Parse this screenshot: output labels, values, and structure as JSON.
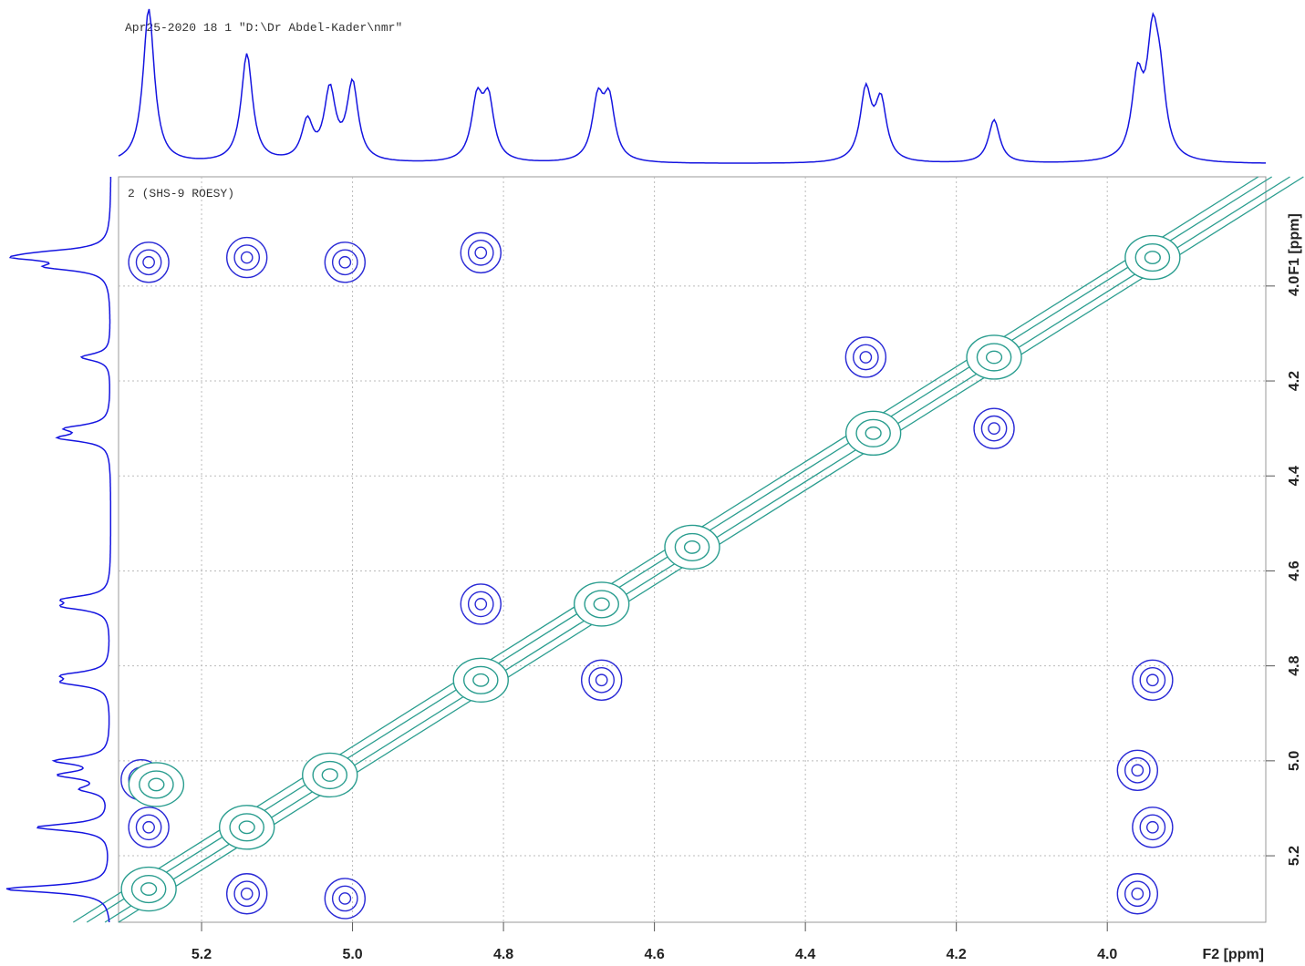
{
  "chart_data": {
    "type": "contour",
    "header": "Apr25-2020  18  1  \"D:\\Dr Abdel-Kader\\nmr\"",
    "subtitle": "2    (SHS-9 ROESY)",
    "x_label": "F2 [ppm]",
    "y_label": "F1 [ppm]",
    "xlim": [
      5.31,
      3.79
    ],
    "ylim": [
      3.77,
      5.34
    ],
    "xticks": [
      5.2,
      {
        "value": 5,
        "label": "5.0"
      },
      4.8,
      4.6,
      4.4,
      4.2,
      {
        "value": 4,
        "label": "4.0"
      }
    ],
    "yticks": [
      {
        "value": 4,
        "label": "4.0"
      },
      4.2,
      4.4,
      4.6,
      4.8,
      {
        "value": 5,
        "label": "5.0"
      },
      5.2
    ],
    "grid": true,
    "series": [
      {
        "color": "#2a2ad6",
        "x": [
          5.27,
          5.14,
          5.01,
          4.83,
          4.32,
          4.15,
          4.83,
          4.67,
          3.94,
          3.96,
          3.94,
          3.96,
          5.28,
          5.27,
          5.14,
          5.01
        ],
        "values": [
          3.95,
          3.94,
          3.95,
          3.93,
          4.15,
          4.3,
          4.67,
          4.83,
          4.83,
          5.02,
          5.14,
          5.28,
          5.04,
          5.14,
          5.28,
          5.29
        ]
      },
      {
        "color": "#2a9d8f",
        "x": [
          3.94,
          4.15,
          4.31,
          4.55,
          4.67,
          4.83,
          5.03,
          5.14,
          5.27,
          5.26
        ],
        "values": [
          3.94,
          4.15,
          4.31,
          4.55,
          4.67,
          4.83,
          5.03,
          5.14,
          5.27,
          5.05
        ]
      }
    ],
    "projection": {
      "color": "#1515e0",
      "x": [
        5.27,
        5.14,
        5.06,
        5.03,
        5.0,
        4.835,
        4.82,
        4.675,
        4.66,
        4.32,
        4.3,
        4.15,
        3.96,
        3.94,
        3.93
      ],
      "values": [
        1.0,
        0.7,
        0.25,
        0.45,
        0.5,
        0.38,
        0.38,
        0.38,
        0.38,
        0.45,
        0.38,
        0.28,
        0.5,
        0.7,
        0.4
      ]
    }
  }
}
